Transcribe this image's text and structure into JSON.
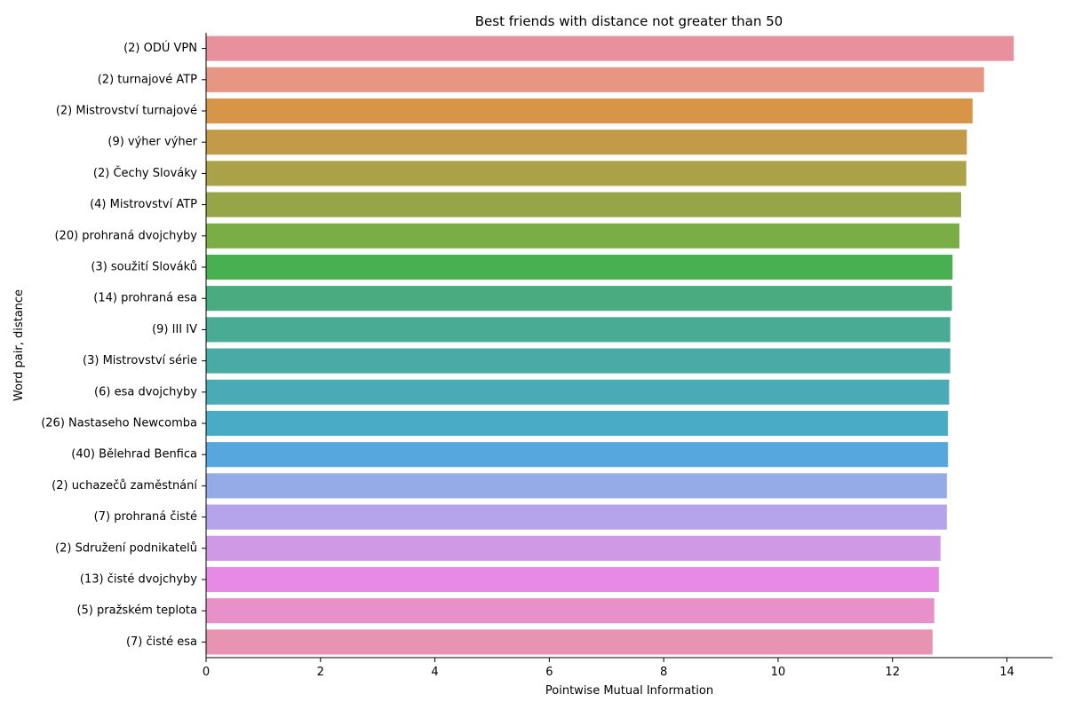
{
  "chart_data": {
    "type": "bar",
    "orientation": "horizontal",
    "title": "Best friends with distance not greater than 50",
    "xlabel": "Pointwise Mutual Information",
    "ylabel": "Word pair, distance",
    "xlim": [
      0,
      14.8
    ],
    "xticks": [
      0,
      2,
      4,
      6,
      8,
      10,
      12,
      14
    ],
    "grid": false,
    "categories": [
      "(2) ODÚ VPN",
      "(2) turnajové ATP",
      "(2) Mistrovství turnajové",
      "(9) výher výher",
      "(2) Čechy Slováky",
      "(4) Mistrovství ATP",
      "(20) prohraná dvojchyby",
      "(3) soužití Slováků",
      "(14) prohraná esa",
      "(9) III IV",
      "(3) Mistrovství série",
      "(6) esa dvojchyby",
      "(26) Nastaseho Newcomba",
      "(40) Bělehrad Benfica",
      "(2) uchazečů zaměstnání",
      "(7) prohraná čisté",
      "(2) Sdružení podnikatelů",
      "(13) čisté dvojchyby",
      "(5) pražském teplota",
      "(7) čisté esa"
    ],
    "values": [
      14.12,
      13.6,
      13.4,
      13.3,
      13.29,
      13.2,
      13.17,
      13.05,
      13.04,
      13.01,
      13.01,
      12.99,
      12.97,
      12.97,
      12.95,
      12.95,
      12.84,
      12.81,
      12.73,
      12.7
    ],
    "colors": [
      "#e8919c",
      "#e69683",
      "#d89548",
      "#c39a48",
      "#aba248",
      "#97a549",
      "#7aad46",
      "#49b052",
      "#4aaa80",
      "#4aab94",
      "#4aaba6",
      "#4aabb7",
      "#4aabc7",
      "#55a7de",
      "#94abe8",
      "#b5a3ec",
      "#cf99e6",
      "#e68ae6",
      "#e890c9",
      "#e893b2"
    ]
  }
}
